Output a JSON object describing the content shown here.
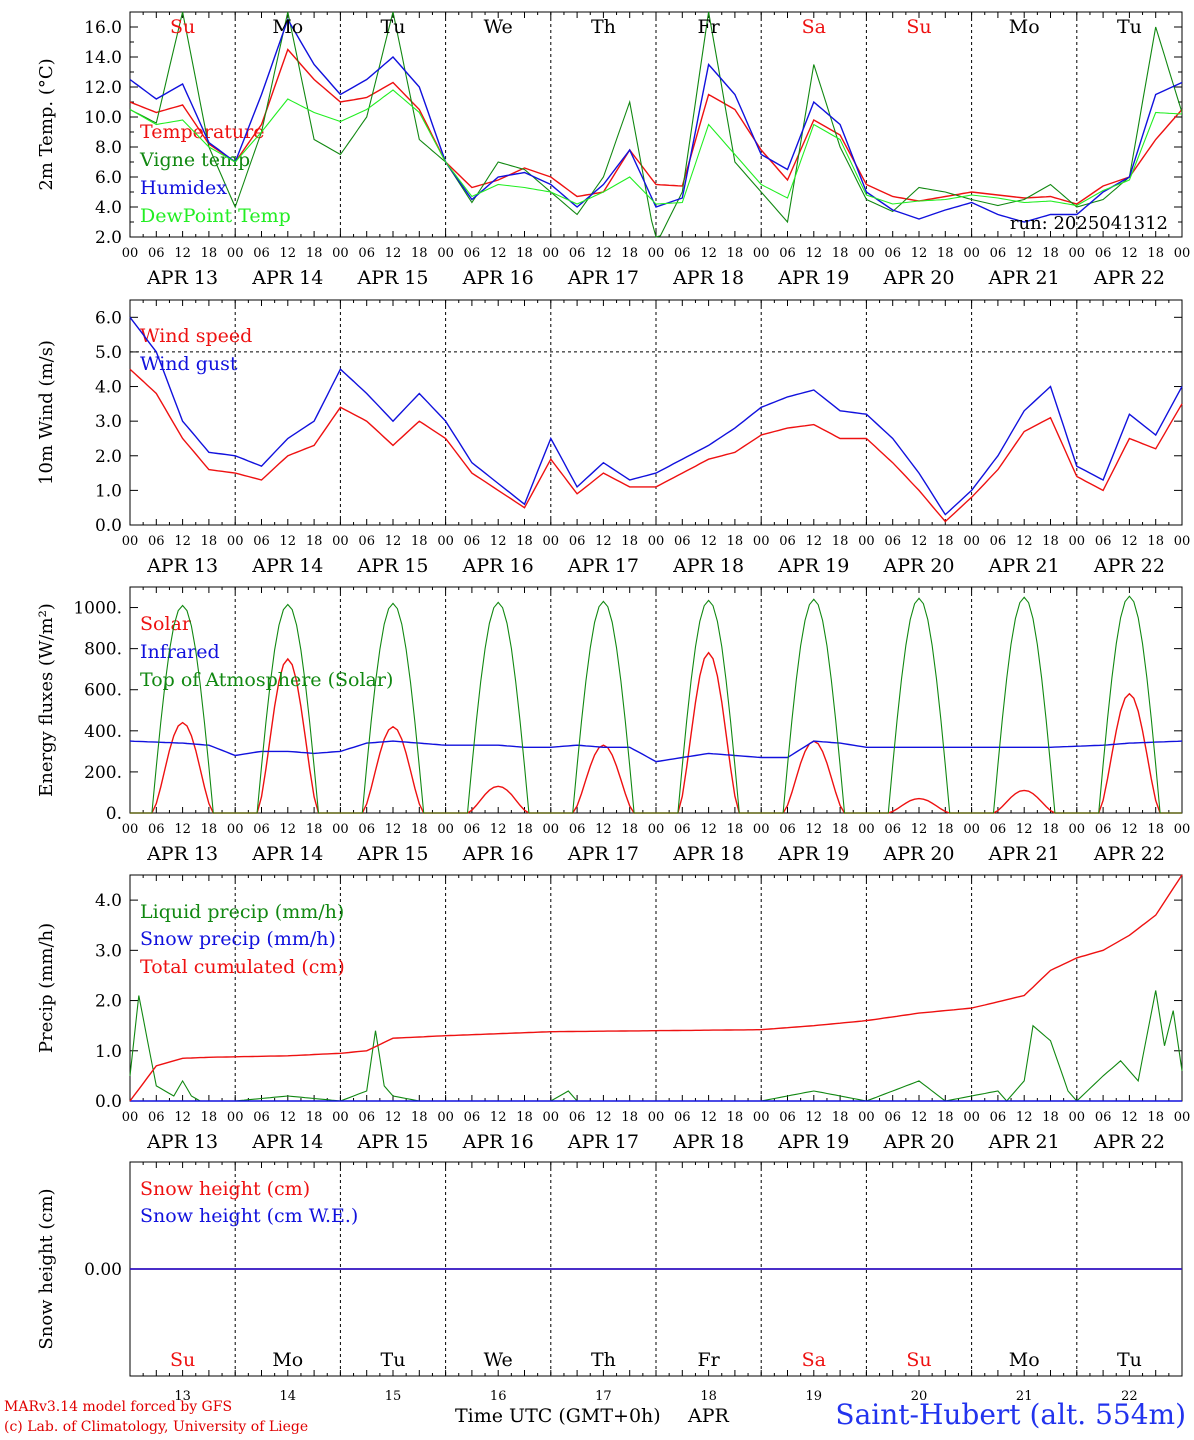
{
  "days": [
    {
      "abbr": "Su",
      "weekend": true,
      "date": "APR 13",
      "num": "13"
    },
    {
      "abbr": "Mo",
      "weekend": false,
      "date": "APR 14",
      "num": "14"
    },
    {
      "abbr": "Tu",
      "weekend": false,
      "date": "APR 15",
      "num": "15"
    },
    {
      "abbr": "We",
      "weekend": false,
      "date": "APR 16",
      "num": "16"
    },
    {
      "abbr": "Th",
      "weekend": false,
      "date": "APR 17",
      "num": "17"
    },
    {
      "abbr": "Fr",
      "weekend": false,
      "date": "APR 18",
      "num": "18"
    },
    {
      "abbr": "Sa",
      "weekend": true,
      "date": "APR 19",
      "num": "19"
    },
    {
      "abbr": "Su",
      "weekend": true,
      "date": "APR 20",
      "num": "20"
    },
    {
      "abbr": "Mo",
      "weekend": false,
      "date": "APR 21",
      "num": "21"
    },
    {
      "abbr": "Tu",
      "weekend": false,
      "date": "APR 22",
      "num": "22"
    }
  ],
  "hour_ticks": [
    "00",
    "06",
    "12",
    "18"
  ],
  "hour_end": "00",
  "colors": {
    "red": "#ee1111",
    "dark_green": "#118811",
    "blue": "#1111dd",
    "light_green": "#22ee22",
    "weekend": "#ee1111"
  },
  "chart_data": [
    {
      "type": "line",
      "ylabel": "2m Temp. (°C)",
      "ylim": [
        2.0,
        17.0
      ],
      "yticks": [
        "2.0",
        "4.0",
        "6.0",
        "8.0",
        "10.0",
        "12.0",
        "14.0",
        "16.0"
      ],
      "ytick_values": [
        2,
        4,
        6,
        8,
        10,
        12,
        14,
        16
      ],
      "x_hours": [
        0,
        6,
        12,
        18,
        24,
        30,
        36,
        42,
        48,
        54,
        60,
        66,
        72,
        78,
        84,
        90,
        96,
        102,
        108,
        114,
        120,
        126,
        132,
        138,
        144,
        150,
        156,
        162,
        168,
        174,
        180,
        186,
        192,
        198,
        204,
        210,
        216,
        222,
        228,
        234,
        240
      ],
      "annotation": "run: 2025041312",
      "series": [
        {
          "name": "Temperature",
          "color": "red",
          "values": [
            11.0,
            10.3,
            10.8,
            8.2,
            7.0,
            9.5,
            14.5,
            12.5,
            11.0,
            11.3,
            12.3,
            10.5,
            7.0,
            5.3,
            5.8,
            6.6,
            6.0,
            4.7,
            5.0,
            7.8,
            5.5,
            5.4,
            11.5,
            10.5,
            7.8,
            5.8,
            9.8,
            8.8,
            5.5,
            4.7,
            4.4,
            4.7,
            5.0,
            4.8,
            4.6,
            4.7,
            4.2,
            5.4,
            6.0,
            8.5,
            10.5
          ]
        },
        {
          "name": "Vigne temp",
          "color": "dark_green",
          "values": [
            10.5,
            9.6,
            17.0,
            8.0,
            4.0,
            9.0,
            17.0,
            8.5,
            7.5,
            10.0,
            17.0,
            8.5,
            7.0,
            4.3,
            7.0,
            6.5,
            5.0,
            3.5,
            6.0,
            11.0,
            1.5,
            5.0,
            17.0,
            7.0,
            5.0,
            3.0,
            13.5,
            8.0,
            4.5,
            3.7,
            5.3,
            5.0,
            4.5,
            4.1,
            4.5,
            5.5,
            4.0,
            4.5,
            6.0,
            16.0,
            10.3
          ]
        },
        {
          "name": "Humidex",
          "color": "blue",
          "values": [
            12.5,
            11.2,
            12.2,
            8.3,
            7.0,
            11.5,
            16.5,
            13.5,
            11.5,
            12.5,
            14.0,
            12.0,
            7.0,
            4.5,
            6.0,
            6.3,
            5.5,
            4.0,
            5.5,
            7.8,
            4.0,
            4.6,
            13.5,
            11.5,
            7.5,
            6.5,
            11.0,
            9.5,
            5.0,
            3.8,
            3.2,
            3.8,
            4.3,
            3.5,
            3.0,
            3.5,
            3.5,
            5.0,
            6.0,
            11.5,
            12.3
          ]
        },
        {
          "name": "DewPoint Temp",
          "color": "light_green",
          "values": [
            10.5,
            9.5,
            9.8,
            8.0,
            7.0,
            9.0,
            11.2,
            10.3,
            9.7,
            10.5,
            11.8,
            10.3,
            7.0,
            4.7,
            5.5,
            5.3,
            5.0,
            4.2,
            5.0,
            6.0,
            4.2,
            4.3,
            9.5,
            7.5,
            5.5,
            4.6,
            9.5,
            8.5,
            4.8,
            4.2,
            4.4,
            4.5,
            4.8,
            4.6,
            4.3,
            4.4,
            4.1,
            5.1,
            5.8,
            10.3,
            10.2
          ]
        }
      ]
    },
    {
      "type": "line",
      "ylabel": "10m Wind (m/s)",
      "ylim": [
        0.0,
        6.5
      ],
      "yticks": [
        "0.0",
        "1.0",
        "2.0",
        "3.0",
        "4.0",
        "5.0",
        "6.0"
      ],
      "ytick_values": [
        0,
        1,
        2,
        3,
        4,
        5,
        6
      ],
      "ref_line": 5.0,
      "x_hours": [
        0,
        6,
        12,
        18,
        24,
        30,
        36,
        42,
        48,
        54,
        60,
        66,
        72,
        78,
        84,
        90,
        96,
        102,
        108,
        114,
        120,
        126,
        132,
        138,
        144,
        150,
        156,
        162,
        168,
        174,
        180,
        186,
        192,
        198,
        204,
        210,
        216,
        222,
        228,
        234,
        240
      ],
      "series": [
        {
          "name": "Wind speed",
          "color": "red",
          "values": [
            4.5,
            3.8,
            2.5,
            1.6,
            1.5,
            1.3,
            2.0,
            2.3,
            3.4,
            3.0,
            2.3,
            3.0,
            2.5,
            1.5,
            1.0,
            0.5,
            1.9,
            0.9,
            1.5,
            1.1,
            1.1,
            1.5,
            1.9,
            2.1,
            2.6,
            2.8,
            2.9,
            2.5,
            2.5,
            1.8,
            1.0,
            0.1,
            0.8,
            1.6,
            2.7,
            3.1,
            1.4,
            1.0,
            2.5,
            2.2,
            3.5
          ]
        },
        {
          "name": "Wind gust",
          "color": "blue",
          "values": [
            6.0,
            5.0,
            3.0,
            2.1,
            2.0,
            1.7,
            2.5,
            3.0,
            4.5,
            3.8,
            3.0,
            3.8,
            3.0,
            1.8,
            1.2,
            0.6,
            2.5,
            1.1,
            1.8,
            1.3,
            1.5,
            1.9,
            2.3,
            2.8,
            3.4,
            3.7,
            3.9,
            3.3,
            3.2,
            2.5,
            1.5,
            0.3,
            1.0,
            2.0,
            3.3,
            4.0,
            1.7,
            1.3,
            3.2,
            2.6,
            4.0
          ]
        }
      ]
    },
    {
      "type": "line",
      "ylabel": "Energy fluxes (W/m²)",
      "ylim": [
        0,
        1100
      ],
      "yticks": [
        "0.",
        "200.",
        "400.",
        "600.",
        "800.",
        "1000."
      ],
      "ytick_values": [
        0,
        200,
        400,
        600,
        800,
        1000
      ],
      "series": [
        {
          "name": "Solar",
          "color": "red",
          "day_peaks": [
            440,
            750,
            420,
            130,
            330,
            780,
            350,
            70,
            110,
            580
          ]
        },
        {
          "name": "Infrared",
          "color": "blue",
          "x_hours": [
            0,
            6,
            12,
            18,
            24,
            30,
            36,
            42,
            48,
            54,
            60,
            66,
            72,
            78,
            84,
            90,
            96,
            102,
            108,
            114,
            120,
            126,
            132,
            138,
            144,
            150,
            156,
            162,
            168,
            174,
            180,
            186,
            192,
            198,
            204,
            210,
            216,
            222,
            228,
            234,
            240
          ],
          "values": [
            350,
            345,
            340,
            330,
            280,
            300,
            300,
            290,
            300,
            340,
            350,
            340,
            330,
            330,
            330,
            320,
            320,
            330,
            320,
            320,
            250,
            270,
            290,
            280,
            270,
            270,
            350,
            340,
            320,
            320,
            320,
            320,
            320,
            320,
            320,
            320,
            325,
            330,
            340,
            345,
            350
          ]
        },
        {
          "name": "Top of Atmosphere (Solar)",
          "color": "dark_green",
          "day_peaks": [
            1010,
            1015,
            1020,
            1025,
            1030,
            1035,
            1040,
            1045,
            1050,
            1055
          ]
        }
      ]
    },
    {
      "type": "line",
      "ylabel": "Precip (mm/h)",
      "ylim": [
        0.0,
        4.5
      ],
      "yticks": [
        "0.0",
        "1.0",
        "2.0",
        "3.0",
        "4.0"
      ],
      "ytick_values": [
        0,
        1,
        2,
        3,
        4
      ],
      "series": [
        {
          "name": "Liquid precip (mm/h)",
          "color": "dark_green",
          "x_hours": [
            0,
            2,
            4,
            6,
            8,
            10,
            12,
            14,
            16,
            18,
            24,
            36,
            48,
            54,
            56,
            58,
            60,
            66,
            72,
            96,
            100,
            102,
            104,
            144,
            156,
            162,
            168,
            180,
            186,
            192,
            198,
            200,
            204,
            206,
            210,
            214,
            216,
            222,
            226,
            230,
            234,
            236,
            238,
            240
          ],
          "values": [
            0.5,
            2.1,
            1.2,
            0.3,
            0.2,
            0.1,
            0.4,
            0.1,
            0.0,
            0.0,
            0.0,
            0.1,
            0.0,
            0.2,
            1.4,
            0.3,
            0.1,
            0.0,
            0.0,
            0.0,
            0.2,
            0.0,
            0.0,
            0.0,
            0.2,
            0.1,
            0.0,
            0.4,
            0.0,
            0.1,
            0.2,
            0.0,
            0.4,
            1.5,
            1.2,
            0.2,
            0.0,
            0.5,
            0.8,
            0.4,
            2.2,
            1.1,
            1.8,
            0.6
          ]
        },
        {
          "name": "Snow precip (mm/h)",
          "color": "blue",
          "values": [
            0.0
          ]
        },
        {
          "name": "Total cumulated (cm)",
          "color": "red",
          "x_hours": [
            0,
            6,
            12,
            18,
            24,
            36,
            48,
            54,
            60,
            72,
            96,
            120,
            144,
            156,
            168,
            180,
            192,
            204,
            210,
            216,
            222,
            228,
            234,
            240
          ],
          "values": [
            0.0,
            0.7,
            0.85,
            0.87,
            0.88,
            0.9,
            0.95,
            1.0,
            1.25,
            1.3,
            1.38,
            1.4,
            1.42,
            1.5,
            1.6,
            1.75,
            1.85,
            2.1,
            2.6,
            2.85,
            3.0,
            3.3,
            3.7,
            4.5
          ]
        }
      ]
    },
    {
      "type": "line",
      "ylabel": "Snow height (cm)",
      "ylim": [
        -1,
        1
      ],
      "yticks": [
        "0.00"
      ],
      "ytick_values": [
        0
      ],
      "series": [
        {
          "name": "Snow height (cm)",
          "color": "red",
          "values": [
            0.0,
            0.0
          ]
        },
        {
          "name": "Snow height (cm W.E.)",
          "color": "blue",
          "values": [
            0.0,
            0.0
          ]
        }
      ]
    }
  ],
  "footer": {
    "credit_line1": "MARv3.14 model forced by GFS",
    "credit_line2": "(c) Lab. of Climatology, University of Liege",
    "xlabel": "Time UTC (GMT+0h)",
    "xunit": "APR",
    "station": "Saint-Hubert (alt. 554m)"
  }
}
